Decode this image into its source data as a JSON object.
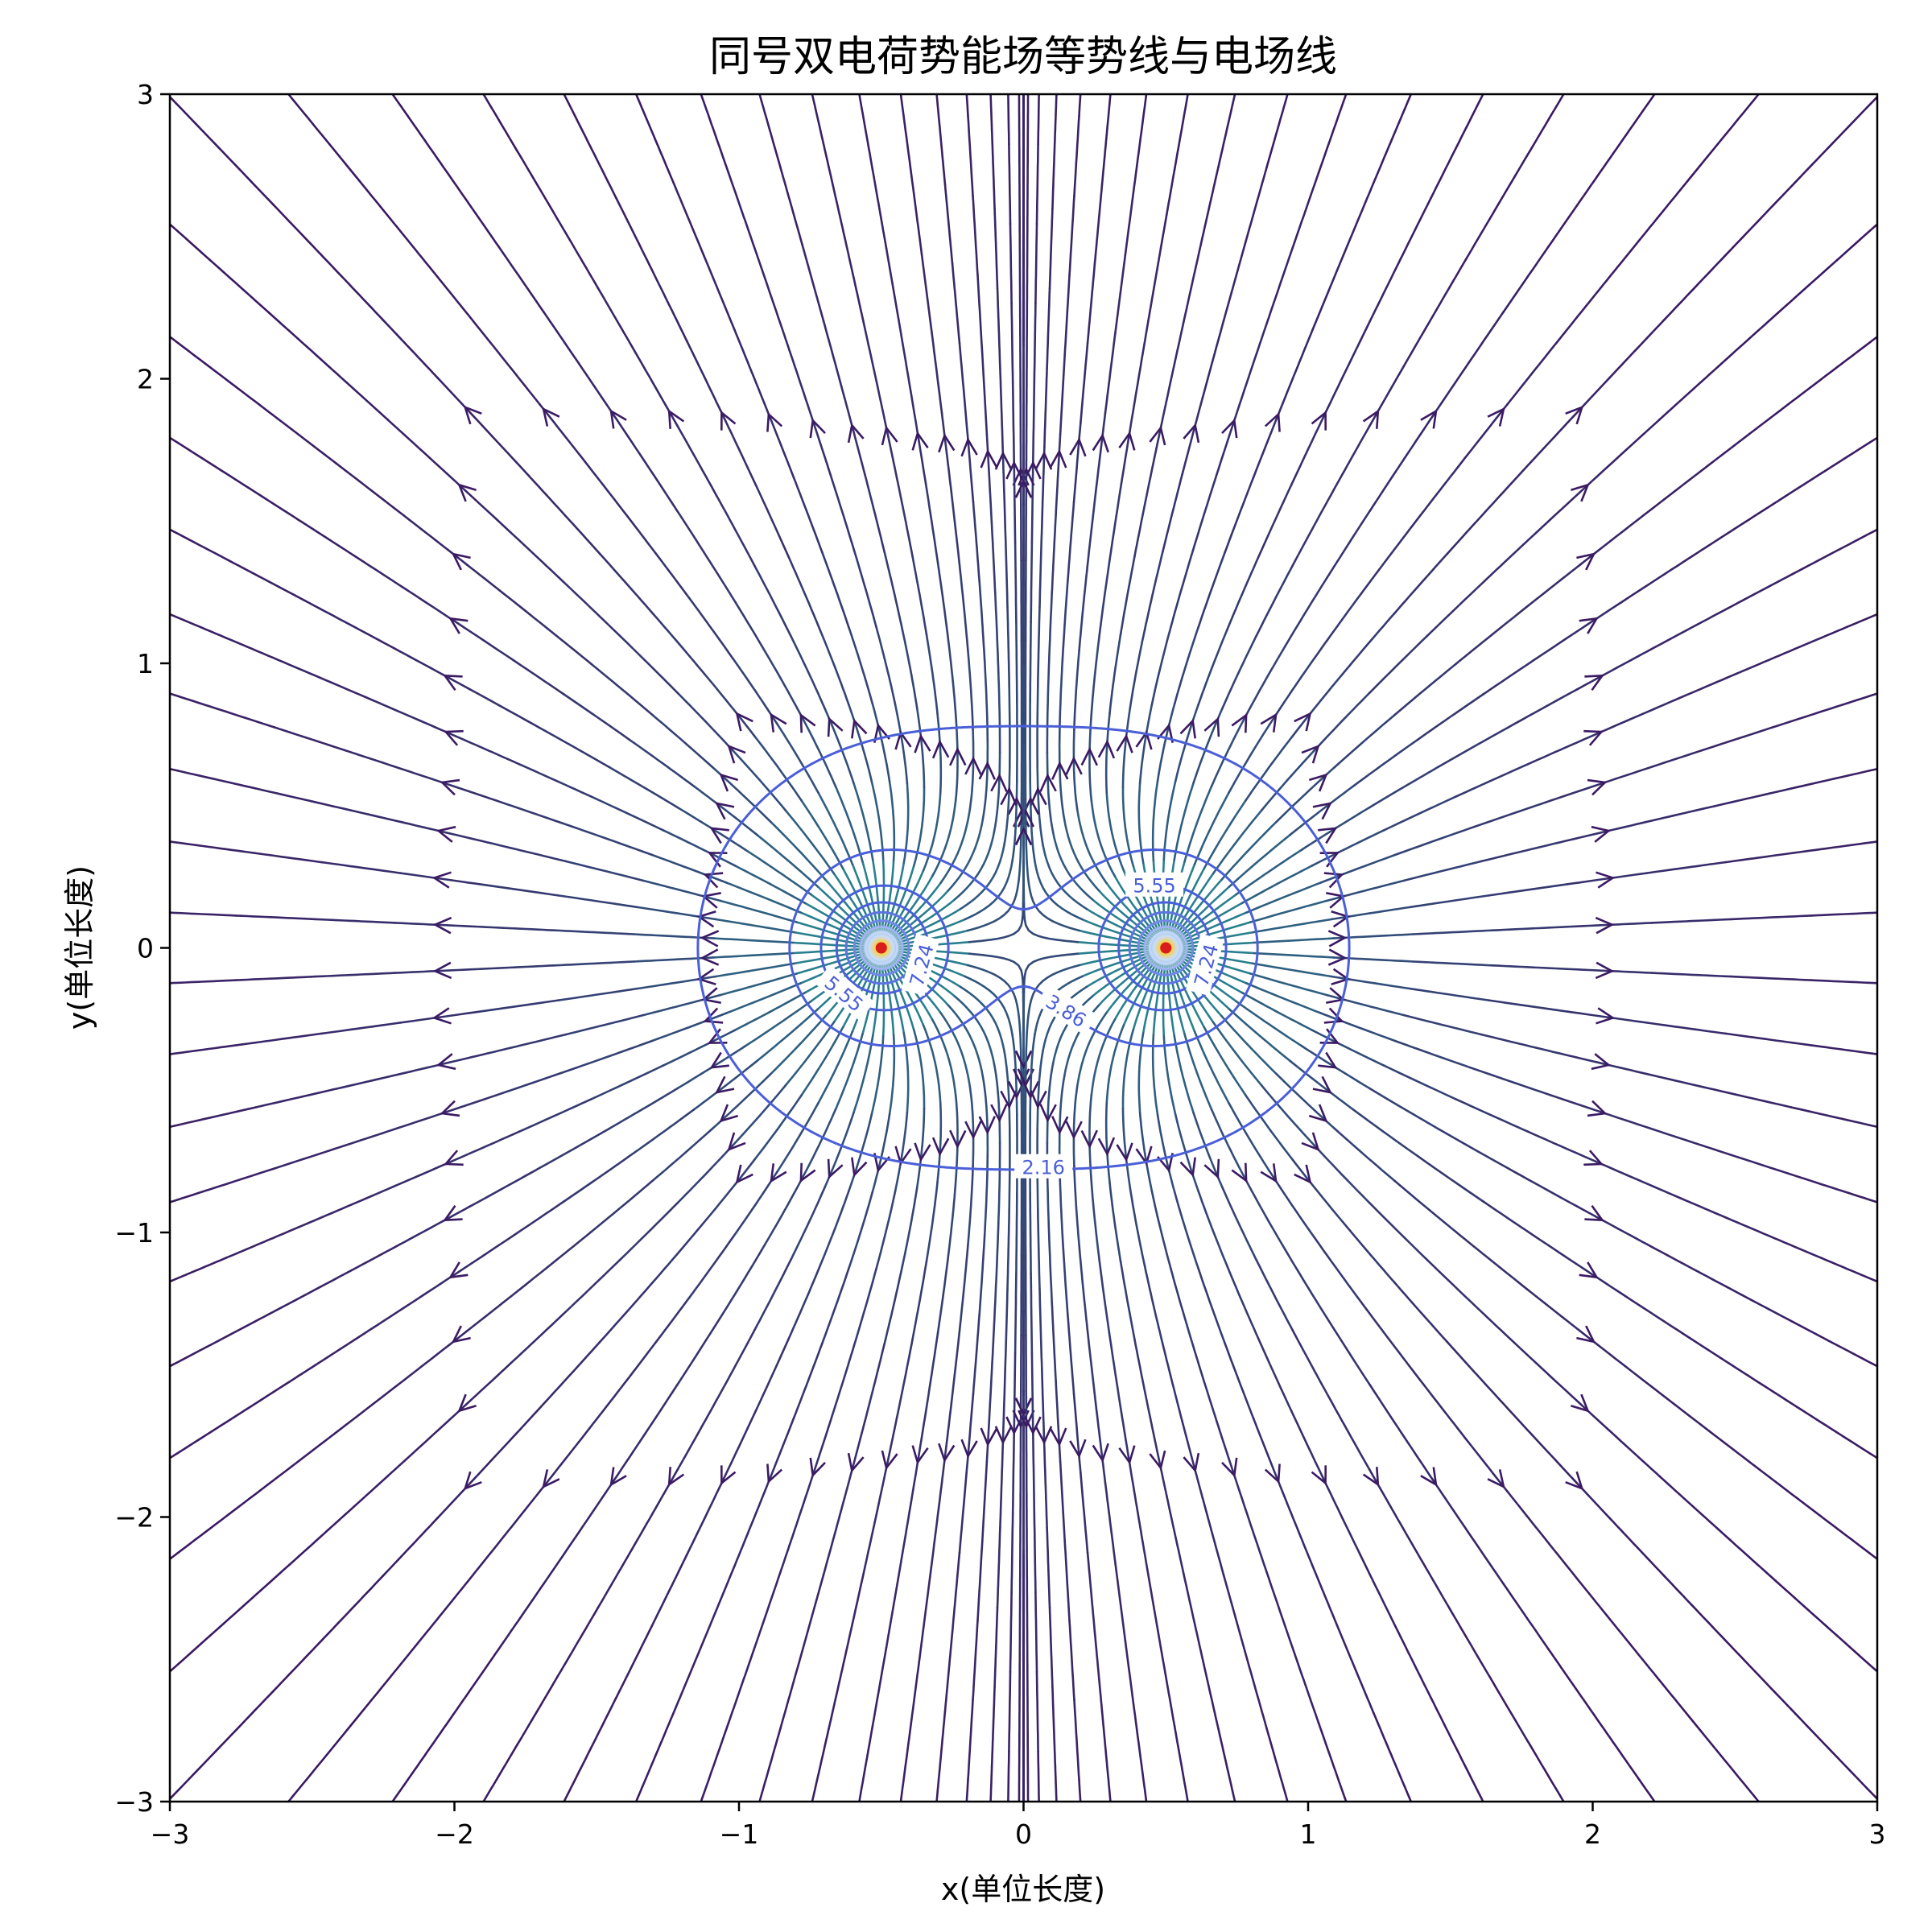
{
  "chart_data": {
    "type": "streamplot-contour",
    "title": "同号双电荷势能场等势线与电场线",
    "xlabel": "x(单位长度)",
    "ylabel": "y(单位长度)",
    "xlim": [
      -3,
      3
    ],
    "ylim": [
      -3,
      3
    ],
    "xticks": [
      -3,
      -2,
      -1,
      0,
      1,
      2,
      3
    ],
    "yticks": [
      -3,
      -2,
      -1,
      0,
      1,
      2,
      3
    ],
    "xtick_labels": [
      "−3",
      "−2",
      "−1",
      "0",
      "1",
      "2",
      "3"
    ],
    "ytick_labels": [
      "−3",
      "−2",
      "−1",
      "0",
      "1",
      "2",
      "3"
    ],
    "charges": [
      {
        "x": -0.5,
        "y": 0,
        "q": 1
      },
      {
        "x": 0.5,
        "y": 0,
        "q": 1
      }
    ],
    "contour_levels": [
      2.16,
      3.86,
      5.55,
      7.24
    ],
    "contour_labels": [
      "2.16",
      "3.86",
      "5.55",
      "7.24"
    ],
    "grid": false,
    "legend": "none"
  },
  "colors": {
    "streamline_strong": "#2a7f8e",
    "streamline_weak": "#3b1a63",
    "contour_low": "#4a5fd8",
    "contour_high": "#a9c3ff",
    "charge_core": "#d91c1c"
  }
}
